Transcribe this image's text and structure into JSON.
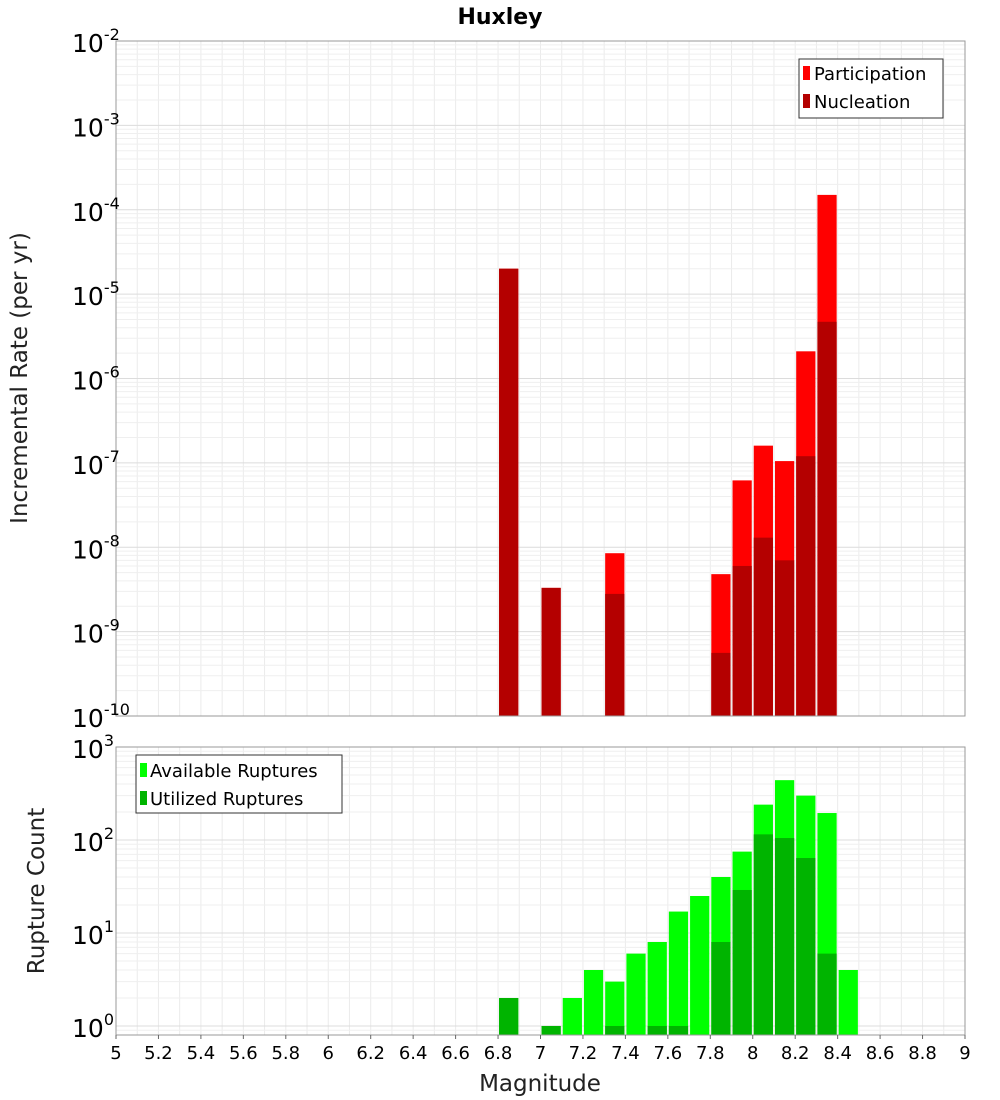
{
  "chart_data": [
    {
      "type": "bar",
      "panel": "top",
      "title": "Huxley",
      "xlabel": "",
      "ylabel": "Incremental Rate (per yr)",
      "x_range": [
        5,
        9
      ],
      "y_scale": "log",
      "ylim": [
        1e-10,
        0.01
      ],
      "y_tick_exponents": [
        -2,
        -3,
        -4,
        -5,
        -6,
        -7,
        -8,
        -9,
        -10
      ],
      "grid": true,
      "legend_position": "top-right",
      "bar_width": 0.1,
      "series": [
        {
          "name": "Participation",
          "color": "#ff0000",
          "x": [
            6.85,
            7.05,
            7.35,
            7.85,
            7.95,
            8.05,
            8.15,
            8.25,
            8.35
          ],
          "values": [
            2e-05,
            3.3e-09,
            8.5e-09,
            4.8e-09,
            6.2e-08,
            1.6e-07,
            1.05e-07,
            2.1e-06,
            0.00015
          ]
        },
        {
          "name": "Nucleation",
          "color": "#b40000",
          "x": [
            6.85,
            7.05,
            7.35,
            7.85,
            7.95,
            8.05,
            8.15,
            8.25,
            8.35
          ],
          "values": [
            2e-05,
            3.3e-09,
            2.8e-09,
            5.6e-10,
            6e-09,
            1.3e-08,
            7e-09,
            1.2e-07,
            4.7e-06
          ]
        }
      ]
    },
    {
      "type": "bar",
      "panel": "bottom",
      "xlabel": "Magnitude",
      "ylabel": "Rupture Count",
      "x_range": [
        5,
        9
      ],
      "x_ticks": [
        "5",
        "5.2",
        "5.4",
        "5.6",
        "5.8",
        "6",
        "6.2",
        "6.4",
        "6.6",
        "6.8",
        "7",
        "7.2",
        "7.4",
        "7.6",
        "7.8",
        "8",
        "8.2",
        "8.4",
        "8.6",
        "8.8",
        "9"
      ],
      "y_scale": "log",
      "ylim": [
        0.8,
        1000
      ],
      "y_tick_exponents": [
        3,
        2,
        1,
        0
      ],
      "grid": true,
      "legend_position": "top-left",
      "bar_width": 0.1,
      "series": [
        {
          "name": "Available Ruptures",
          "color": "#00ff00",
          "x": [
            6.85,
            7.05,
            7.15,
            7.25,
            7.35,
            7.45,
            7.55,
            7.65,
            7.75,
            7.85,
            7.95,
            8.05,
            8.15,
            8.25,
            8.35,
            8.45
          ],
          "values": [
            2,
            1,
            2,
            4,
            3,
            6,
            8,
            17,
            25,
            40,
            75,
            240,
            440,
            300,
            195,
            4
          ]
        },
        {
          "name": "Utilized Ruptures",
          "color": "#00b400",
          "x": [
            6.85,
            7.05,
            7.35,
            7.55,
            7.65,
            7.85,
            7.95,
            8.05,
            8.15,
            8.25,
            8.35
          ],
          "values": [
            2,
            1,
            1,
            1,
            1,
            8,
            29,
            115,
            105,
            64,
            6
          ]
        }
      ]
    }
  ]
}
